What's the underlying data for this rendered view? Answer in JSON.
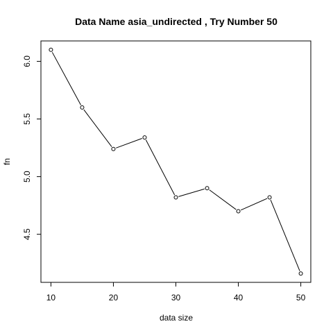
{
  "chart_data": {
    "type": "line",
    "title": "Data Name  asia_undirected , Try Number  50",
    "xlabel": "data size",
    "ylabel": "fn",
    "x": [
      10,
      15,
      20,
      25,
      30,
      35,
      40,
      45,
      50
    ],
    "y": [
      6.1,
      5.6,
      5.24,
      5.34,
      4.82,
      4.9,
      4.7,
      4.82,
      4.16
    ],
    "xticks": [
      10,
      20,
      30,
      40,
      50
    ],
    "yticks": [
      4.5,
      5.0,
      5.5,
      6.0
    ],
    "xtick_labels": [
      "10",
      "20",
      "30",
      "40",
      "50"
    ],
    "ytick_labels": [
      "4.5",
      "5.0",
      "5.5",
      "6.0"
    ],
    "xlim": [
      8.4,
      51.6
    ],
    "ylim": [
      4.083,
      6.177
    ],
    "grid": false,
    "legend": "none",
    "line_color": "#000000",
    "marker": "open-circle"
  }
}
